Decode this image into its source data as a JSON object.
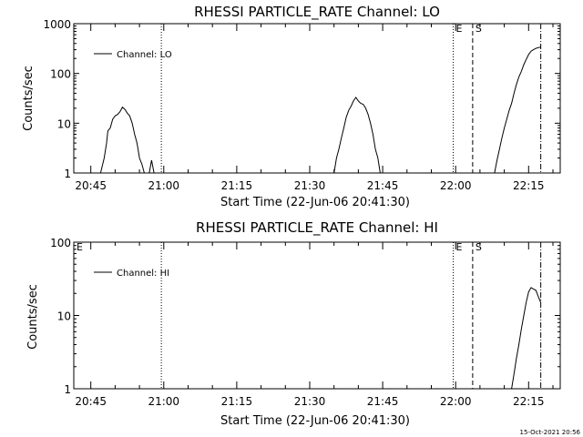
{
  "timestamp": "15-Oct-2021 20:56",
  "chart_data": [
    {
      "type": "line",
      "title": "RHESSI PARTICLE_RATE Channel: LO",
      "xlabel": "Start Time (22-Jun-06 20:41:30)",
      "ylabel": "Counts/sec",
      "y_scale": "log",
      "xlim": [
        "20:41:30",
        "22:21:30"
      ],
      "ylim": [
        1,
        1000
      ],
      "x_ticks": [
        "20:45",
        "21:00",
        "21:15",
        "21:30",
        "21:45",
        "22:00",
        "22:15"
      ],
      "y_ticks": [
        "1",
        "10",
        "100",
        "1000"
      ],
      "legend_placement": "top-left",
      "markers": [
        {
          "label": "",
          "time": "20:41:30",
          "style": "solid"
        },
        {
          "label": "",
          "time": "20:59:30",
          "style": "dotted"
        },
        {
          "label": "E",
          "time": "21:59:30",
          "style": "dotted"
        },
        {
          "label": "S",
          "time": "22:03:30",
          "style": "dashed"
        },
        {
          "label": "",
          "time": "22:17:30",
          "style": "dash-dot"
        }
      ],
      "series": [
        {
          "name": "Channel: LO",
          "segments": [
            [
              [
                "20:47:00",
                1
              ],
              [
                "20:47:45",
                2
              ],
              [
                "20:48:15",
                4
              ],
              [
                "20:48:30",
                7
              ],
              [
                "20:49:00",
                8
              ],
              [
                "20:49:30",
                12
              ],
              [
                "20:50:00",
                14
              ],
              [
                "20:50:30",
                15
              ],
              [
                "20:51:00",
                17
              ],
              [
                "20:51:30",
                21
              ],
              [
                "20:52:00",
                19
              ],
              [
                "20:52:30",
                16
              ],
              [
                "20:53:00",
                14
              ],
              [
                "20:53:30",
                10
              ],
              [
                "20:54:00",
                6
              ],
              [
                "20:54:30",
                4
              ],
              [
                "20:55:00",
                2
              ],
              [
                "20:55:30",
                1.5
              ],
              [
                "20:56:00",
                1
              ]
            ],
            [
              [
                "20:57:00",
                1
              ],
              [
                "20:57:30",
                1.8
              ],
              [
                "20:58:00",
                1
              ]
            ],
            [
              [
                "21:35:00",
                1
              ],
              [
                "21:35:30",
                2
              ],
              [
                "21:36:00",
                3
              ],
              [
                "21:36:30",
                5
              ],
              [
                "21:37:00",
                8
              ],
              [
                "21:37:30",
                13
              ],
              [
                "21:38:00",
                18
              ],
              [
                "21:38:30",
                22
              ],
              [
                "21:39:00",
                28
              ],
              [
                "21:39:30",
                33
              ],
              [
                "21:40:00",
                28
              ],
              [
                "21:40:30",
                25
              ],
              [
                "21:41:00",
                24
              ],
              [
                "21:41:30",
                20
              ],
              [
                "21:42:00",
                15
              ],
              [
                "21:42:30",
                10
              ],
              [
                "21:43:00",
                6
              ],
              [
                "21:43:30",
                3
              ],
              [
                "21:44:00",
                2
              ],
              [
                "21:44:30",
                1
              ]
            ],
            [
              [
                "22:08:00",
                1
              ],
              [
                "22:08:30",
                1.8
              ],
              [
                "22:09:00",
                3
              ],
              [
                "22:09:30",
                5
              ],
              [
                "22:10:00",
                8
              ],
              [
                "22:10:30",
                12
              ],
              [
                "22:11:00",
                18
              ],
              [
                "22:11:30",
                25
              ],
              [
                "22:12:00",
                40
              ],
              [
                "22:12:30",
                60
              ],
              [
                "22:13:00",
                85
              ],
              [
                "22:13:30",
                110
              ],
              [
                "22:14:00",
                150
              ],
              [
                "22:14:30",
                190
              ],
              [
                "22:15:00",
                240
              ],
              [
                "22:15:30",
                280
              ],
              [
                "22:16:00",
                300
              ],
              [
                "22:16:30",
                320
              ],
              [
                "22:17:00",
                330
              ],
              [
                "22:17:30",
                340
              ]
            ]
          ]
        }
      ]
    },
    {
      "type": "line",
      "title": "RHESSI PARTICLE_RATE Channel: HI",
      "xlabel": "Start Time (22-Jun-06 20:41:30)",
      "ylabel": "Counts/sec",
      "y_scale": "log",
      "xlim": [
        "20:41:30",
        "22:21:30"
      ],
      "ylim": [
        1,
        100
      ],
      "x_ticks": [
        "20:45",
        "21:00",
        "21:15",
        "21:30",
        "21:45",
        "22:00",
        "22:15"
      ],
      "y_ticks": [
        "1",
        "10",
        "100"
      ],
      "legend_placement": "top-left",
      "markers": [
        {
          "label": "E",
          "time": "20:41:30",
          "style": "solid"
        },
        {
          "label": "",
          "time": "20:59:30",
          "style": "dotted"
        },
        {
          "label": "E",
          "time": "21:59:30",
          "style": "dotted"
        },
        {
          "label": "S",
          "time": "22:03:30",
          "style": "dashed"
        },
        {
          "label": "",
          "time": "22:17:30",
          "style": "dash-dot"
        }
      ],
      "series": [
        {
          "name": "Channel: HI",
          "segments": [
            [
              [
                "22:11:30",
                1
              ],
              [
                "22:12:00",
                1.6
              ],
              [
                "22:12:30",
                2.6
              ],
              [
                "22:13:00",
                4
              ],
              [
                "22:13:30",
                6.5
              ],
              [
                "22:14:00",
                10
              ],
              [
                "22:14:30",
                15
              ],
              [
                "22:15:00",
                21
              ],
              [
                "22:15:30",
                24
              ],
              [
                "22:16:00",
                23
              ],
              [
                "22:16:30",
                22
              ],
              [
                "22:17:00",
                18
              ],
              [
                "22:17:30",
                15
              ]
            ]
          ]
        }
      ]
    }
  ]
}
